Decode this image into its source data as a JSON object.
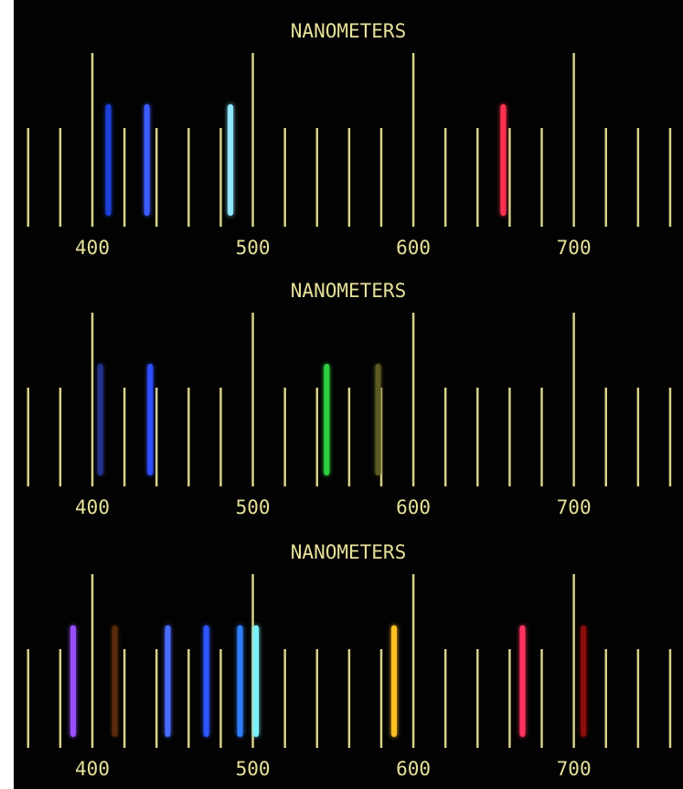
{
  "chart_data": [
    {
      "type": "spectrum",
      "title": "NANOMETERS",
      "xlim": [
        351,
        768
      ],
      "xticks": [
        400,
        500,
        600,
        700
      ],
      "minor_xticks": [
        360,
        380,
        420,
        440,
        460,
        480,
        520,
        540,
        560,
        580,
        620,
        640,
        660,
        680,
        720,
        740,
        760
      ],
      "x": [
        410,
        434,
        486,
        656
      ],
      "colors": [
        "#1f3fd8",
        "#3a5cff",
        "#8fe8ff",
        "#ff3050"
      ]
    },
    {
      "type": "spectrum",
      "title": "NANOMETERS",
      "xlim": [
        351,
        768
      ],
      "xticks": [
        400,
        500,
        600,
        700
      ],
      "minor_xticks": [
        360,
        380,
        420,
        440,
        460,
        480,
        520,
        540,
        560,
        580,
        620,
        640,
        660,
        680,
        720,
        740,
        760
      ],
      "x": [
        405,
        436,
        546,
        578
      ],
      "colors": [
        "#20308a",
        "#2f50ff",
        "#2fd040",
        "#5a5a20"
      ]
    },
    {
      "type": "spectrum",
      "title": "NANOMETERS",
      "xlim": [
        351,
        768
      ],
      "xticks": [
        400,
        500,
        600,
        700
      ],
      "minor_xticks": [
        360,
        380,
        420,
        440,
        460,
        480,
        520,
        540,
        560,
        580,
        620,
        640,
        660,
        680,
        720,
        740,
        760
      ],
      "x": [
        388,
        414,
        447,
        471,
        492,
        502,
        588,
        668,
        706
      ],
      "colors": [
        "#9a50ff",
        "#5a2a10",
        "#4a6cff",
        "#2d55ff",
        "#2d80ff",
        "#7af0ff",
        "#ffc020",
        "#ff3060",
        "#8a1010"
      ]
    }
  ]
}
